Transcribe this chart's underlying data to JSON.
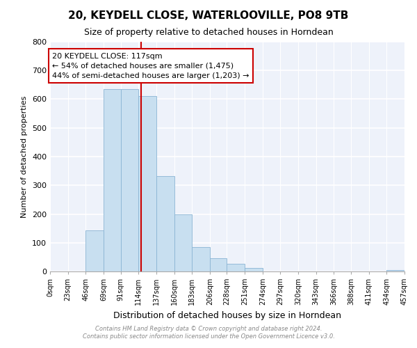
{
  "title": "20, KEYDELL CLOSE, WATERLOOVILLE, PO8 9TB",
  "subtitle": "Size of property relative to detached houses in Horndean",
  "xlabel": "Distribution of detached houses by size in Horndean",
  "ylabel": "Number of detached properties",
  "bar_edges": [
    0,
    23,
    46,
    69,
    91,
    114,
    137,
    160,
    183,
    206,
    228,
    251,
    274,
    297,
    320,
    343,
    366,
    388,
    411,
    434,
    457
  ],
  "bar_heights": [
    0,
    0,
    143,
    635,
    635,
    610,
    333,
    200,
    84,
    46,
    27,
    12,
    0,
    0,
    0,
    0,
    0,
    0,
    0,
    4
  ],
  "bar_color": "#c8dff0",
  "bar_edgecolor": "#8ab4d4",
  "tick_labels": [
    "0sqm",
    "23sqm",
    "46sqm",
    "69sqm",
    "91sqm",
    "114sqm",
    "137sqm",
    "160sqm",
    "183sqm",
    "206sqm",
    "228sqm",
    "251sqm",
    "274sqm",
    "297sqm",
    "320sqm",
    "343sqm",
    "366sqm",
    "388sqm",
    "411sqm",
    "434sqm",
    "457sqm"
  ],
  "ylim": [
    0,
    800
  ],
  "yticks": [
    0,
    100,
    200,
    300,
    400,
    500,
    600,
    700,
    800
  ],
  "property_size": 117,
  "vline_color": "#cc0000",
  "annotation_line1": "20 KEYDELL CLOSE: 117sqm",
  "annotation_line2": "← 54% of detached houses are smaller (1,475)",
  "annotation_line3": "44% of semi-detached houses are larger (1,203) →",
  "annotation_box_color": "#ffffff",
  "annotation_box_edgecolor": "#cc0000",
  "footer1": "Contains HM Land Registry data © Crown copyright and database right 2024.",
  "footer2": "Contains public sector information licensed under the Open Government Licence v3.0.",
  "bg_color": "#ffffff",
  "plot_bg_color": "#eef2fa",
  "grid_color": "#ffffff"
}
